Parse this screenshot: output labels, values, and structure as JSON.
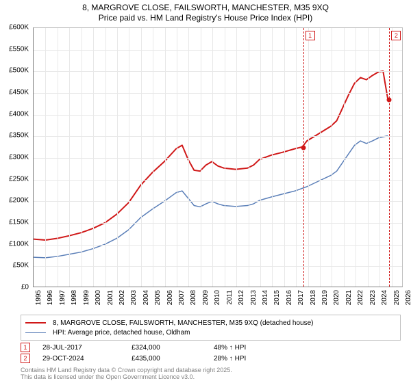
{
  "title": {
    "line1": "8, MARGROVE CLOSE, FAILSWORTH, MANCHESTER, M35 9XQ",
    "line2": "Price paid vs. HM Land Registry's House Price Index (HPI)",
    "fontsize": 12,
    "color": "#000000"
  },
  "chart": {
    "type": "line",
    "background_color": "#ffffff",
    "grid_color": "#e8e8e8",
    "axis_color": "#808080",
    "label_fontsize": 10,
    "x": {
      "min": 1995,
      "max": 2026,
      "ticks": [
        1995,
        1996,
        1997,
        1998,
        1999,
        2000,
        2001,
        2002,
        2003,
        2004,
        2005,
        2006,
        2007,
        2008,
        2009,
        2010,
        2011,
        2012,
        2013,
        2014,
        2015,
        2016,
        2017,
        2018,
        2019,
        2020,
        2021,
        2022,
        2023,
        2024,
        2025,
        2026
      ]
    },
    "y": {
      "min": 0,
      "max": 600000,
      "ticks": [
        0,
        50000,
        100000,
        150000,
        200000,
        250000,
        300000,
        350000,
        400000,
        450000,
        500000,
        550000,
        600000
      ],
      "tick_labels": [
        "£0",
        "£50K",
        "£100K",
        "£150K",
        "£200K",
        "£250K",
        "£300K",
        "£350K",
        "£400K",
        "£450K",
        "£500K",
        "£550K",
        "£600K"
      ]
    },
    "series": [
      {
        "id": "price_paid",
        "label": "8, MARGROVE CLOSE, FAILSWORTH, MANCHESTER, M35 9XQ (detached house)",
        "color": "#d01818",
        "line_width": 2,
        "points": [
          [
            1995,
            110000
          ],
          [
            1996,
            108000
          ],
          [
            1997,
            112000
          ],
          [
            1998,
            118000
          ],
          [
            1999,
            125000
          ],
          [
            2000,
            135000
          ],
          [
            2001,
            148000
          ],
          [
            2002,
            168000
          ],
          [
            2003,
            195000
          ],
          [
            2004,
            235000
          ],
          [
            2005,
            265000
          ],
          [
            2006,
            290000
          ],
          [
            2007,
            320000
          ],
          [
            2007.5,
            328000
          ],
          [
            2008,
            295000
          ],
          [
            2008.5,
            270000
          ],
          [
            2009,
            268000
          ],
          [
            2009.5,
            282000
          ],
          [
            2010,
            290000
          ],
          [
            2010.5,
            280000
          ],
          [
            2011,
            275000
          ],
          [
            2012,
            272000
          ],
          [
            2013,
            275000
          ],
          [
            2013.5,
            282000
          ],
          [
            2014,
            295000
          ],
          [
            2015,
            305000
          ],
          [
            2016,
            312000
          ],
          [
            2017,
            320000
          ],
          [
            2017.6,
            324000
          ],
          [
            2018,
            338000
          ],
          [
            2019,
            355000
          ],
          [
            2020,
            372000
          ],
          [
            2020.5,
            385000
          ],
          [
            2021,
            415000
          ],
          [
            2021.5,
            445000
          ],
          [
            2022,
            472000
          ],
          [
            2022.5,
            485000
          ],
          [
            2023,
            480000
          ],
          [
            2023.5,
            490000
          ],
          [
            2024,
            498000
          ],
          [
            2024.4,
            500000
          ],
          [
            2024.8,
            435000
          ]
        ]
      },
      {
        "id": "hpi",
        "label": "HPI: Average price, detached house, Oldham",
        "color": "#5b7fb8",
        "line_width": 1.5,
        "points": [
          [
            1995,
            68000
          ],
          [
            1996,
            67000
          ],
          [
            1997,
            70000
          ],
          [
            1998,
            75000
          ],
          [
            1999,
            80000
          ],
          [
            2000,
            88000
          ],
          [
            2001,
            98000
          ],
          [
            2002,
            112000
          ],
          [
            2003,
            132000
          ],
          [
            2004,
            160000
          ],
          [
            2005,
            180000
          ],
          [
            2006,
            198000
          ],
          [
            2007,
            218000
          ],
          [
            2007.5,
            222000
          ],
          [
            2008,
            205000
          ],
          [
            2008.5,
            188000
          ],
          [
            2009,
            185000
          ],
          [
            2009.5,
            192000
          ],
          [
            2010,
            198000
          ],
          [
            2010.5,
            192000
          ],
          [
            2011,
            188000
          ],
          [
            2012,
            186000
          ],
          [
            2013,
            188000
          ],
          [
            2013.5,
            192000
          ],
          [
            2014,
            200000
          ],
          [
            2015,
            208000
          ],
          [
            2016,
            215000
          ],
          [
            2017,
            222000
          ],
          [
            2018,
            232000
          ],
          [
            2019,
            245000
          ],
          [
            2020,
            258000
          ],
          [
            2020.5,
            268000
          ],
          [
            2021,
            288000
          ],
          [
            2021.5,
            308000
          ],
          [
            2022,
            328000
          ],
          [
            2022.5,
            338000
          ],
          [
            2023,
            332000
          ],
          [
            2023.5,
            338000
          ],
          [
            2024,
            345000
          ],
          [
            2024.8,
            350000
          ]
        ]
      }
    ],
    "events": [
      {
        "n": "1",
        "x": 2017.6,
        "badge_color": "#d01818",
        "price_y": 324000
      },
      {
        "n": "2",
        "x": 2024.82,
        "badge_color": "#d01818",
        "price_y": 435000
      }
    ]
  },
  "legend": {
    "border_color": "#c0c0c0",
    "items": [
      {
        "color": "#d01818",
        "width": 2,
        "label": "8, MARGROVE CLOSE, FAILSWORTH, MANCHESTER, M35 9XQ (detached house)"
      },
      {
        "color": "#5b7fb8",
        "width": 1.5,
        "label": "HPI: Average price, detached house, Oldham"
      }
    ]
  },
  "sales": [
    {
      "n": "1",
      "badge_color": "#d01818",
      "date": "28-JUL-2017",
      "price": "£324,000",
      "hpi": "48% ↑ HPI"
    },
    {
      "n": "2",
      "badge_color": "#d01818",
      "date": "29-OCT-2024",
      "price": "£435,000",
      "hpi": "28% ↑ HPI"
    }
  ],
  "footer": {
    "line1": "Contains HM Land Registry data © Crown copyright and database right 2025.",
    "line2": "This data is licensed under the Open Government Licence v3.0.",
    "color": "#808080",
    "fontsize": 9
  }
}
